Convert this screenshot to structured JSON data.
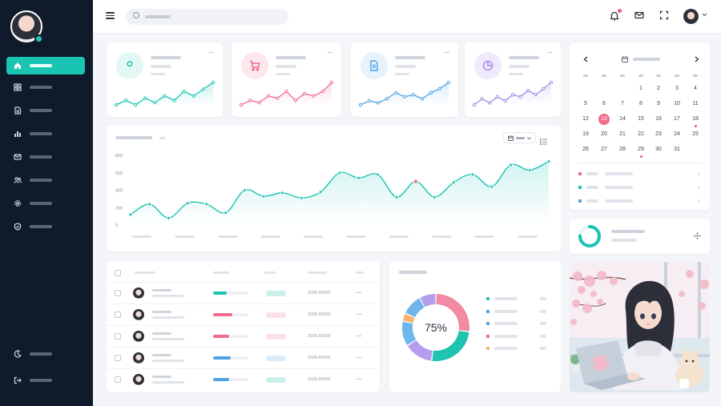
{
  "sidebar": {
    "items": [
      {
        "icon": "home-icon",
        "active": true
      },
      {
        "icon": "grid-icon",
        "active": false
      },
      {
        "icon": "document-icon",
        "active": false
      },
      {
        "icon": "bar-chart-icon",
        "active": false
      },
      {
        "icon": "mail-icon",
        "active": false
      },
      {
        "icon": "users-icon",
        "active": false
      },
      {
        "icon": "settings-icon",
        "active": false
      },
      {
        "icon": "shield-icon",
        "active": false
      }
    ],
    "bottom": [
      {
        "icon": "moon-icon"
      },
      {
        "icon": "logout-icon"
      }
    ]
  },
  "topbar": {
    "icons": [
      "menu-icon",
      "search-icon",
      "bell-icon",
      "mail-icon",
      "fullscreen-icon",
      "avatar",
      "chevron-down-icon"
    ]
  },
  "colors": {
    "accent": "#19c4b3",
    "pink": "#ef6b8a",
    "blue": "#4fa3e3",
    "purple": "#a48ae6",
    "orange": "#f6b46a",
    "sidebar": "#0f1b2a"
  },
  "stat_cards": [
    {
      "icon": "user-icon",
      "color": "#19c4b3",
      "bg": "#e3f8f5",
      "spark": [
        3,
        5,
        3,
        6,
        4,
        7,
        5,
        9,
        7,
        10,
        13
      ]
    },
    {
      "icon": "cart-icon",
      "color": "#ef6b8a",
      "bg": "#fde7ed",
      "spark": [
        4,
        6,
        5,
        8,
        7,
        10,
        6,
        9,
        8,
        10,
        14
      ]
    },
    {
      "icon": "file-icon",
      "color": "#4fa3e3",
      "bg": "#e6f2fc",
      "spark": [
        4,
        6,
        5,
        7,
        10,
        8,
        9,
        7,
        10,
        12,
        15
      ]
    },
    {
      "icon": "pie-icon",
      "color": "#a48ae6",
      "bg": "#efeafb",
      "spark": [
        4,
        7,
        5,
        8,
        6,
        9,
        8,
        11,
        9,
        12,
        15
      ]
    }
  ],
  "chart_data": {
    "type": "area",
    "ylim": [
      0,
      800
    ],
    "y_ticks": [
      "800",
      "600",
      "400",
      "200",
      "0"
    ],
    "values": [
      120,
      240,
      80,
      250,
      240,
      140,
      400,
      330,
      370,
      310,
      380,
      600,
      540,
      580,
      320,
      500,
      320,
      490,
      580,
      440,
      690,
      630,
      730
    ],
    "highlight_index": 15,
    "grid": false
  },
  "calendar": {
    "weeks": [
      [
        "",
        "",
        "",
        "1",
        "2",
        "3",
        "4"
      ],
      [
        "5",
        "6",
        "7",
        "8",
        "9",
        "10",
        "11"
      ],
      [
        "12",
        "13",
        "14",
        "15",
        "16",
        "17",
        "18"
      ],
      [
        "19",
        "20",
        "21",
        "22",
        "23",
        "24",
        "25"
      ],
      [
        "26",
        "27",
        "28",
        "29",
        "30",
        "31",
        ""
      ]
    ],
    "today": "13",
    "marked": [
      "18",
      "29"
    ],
    "events": [
      {
        "color": "#ef6b8a"
      },
      {
        "color": "#19c4b3"
      },
      {
        "color": "#4fa3e3"
      }
    ]
  },
  "table": {
    "rows": [
      {
        "progress": 0.38,
        "color": "#19c4b3",
        "badge": "#c9f1ea",
        "date": "2026-00000"
      },
      {
        "progress": 0.55,
        "color": "#ef6b8a",
        "badge": "#fde0e7",
        "date": "2026-00000"
      },
      {
        "progress": 0.45,
        "color": "#ef6b8a",
        "badge": "#fde0e7",
        "date": "2026-00000"
      },
      {
        "progress": 0.5,
        "color": "#4fa3e3",
        "badge": "#dcecfb",
        "date": "2026-00000"
      },
      {
        "progress": 0.45,
        "color": "#4fa3e3",
        "badge": "#c9f1ea",
        "date": "2026-00000"
      }
    ]
  },
  "donut": {
    "center_label": "75%",
    "segments": [
      {
        "value": 0.27,
        "color": "#f28aa3"
      },
      {
        "value": 0.25,
        "color": "#1fc4b1"
      },
      {
        "value": 0.14,
        "color": "#b59ded"
      },
      {
        "value": 0.12,
        "color": "#6fb6ec"
      },
      {
        "value": 0.04,
        "color": "#f6b46a"
      },
      {
        "value": 0.1,
        "color": "#6fb6ec"
      },
      {
        "value": 0.08,
        "color": "#b59ded"
      }
    ],
    "legend": [
      {
        "color": "#1fc4b1"
      },
      {
        "color": "#4fa3e3"
      },
      {
        "color": "#4fa3e3"
      },
      {
        "color": "#ef6b8a"
      },
      {
        "color": "#f6b46a"
      }
    ]
  },
  "progress_card": {
    "value": 0.75,
    "color": "#19c4b3"
  }
}
